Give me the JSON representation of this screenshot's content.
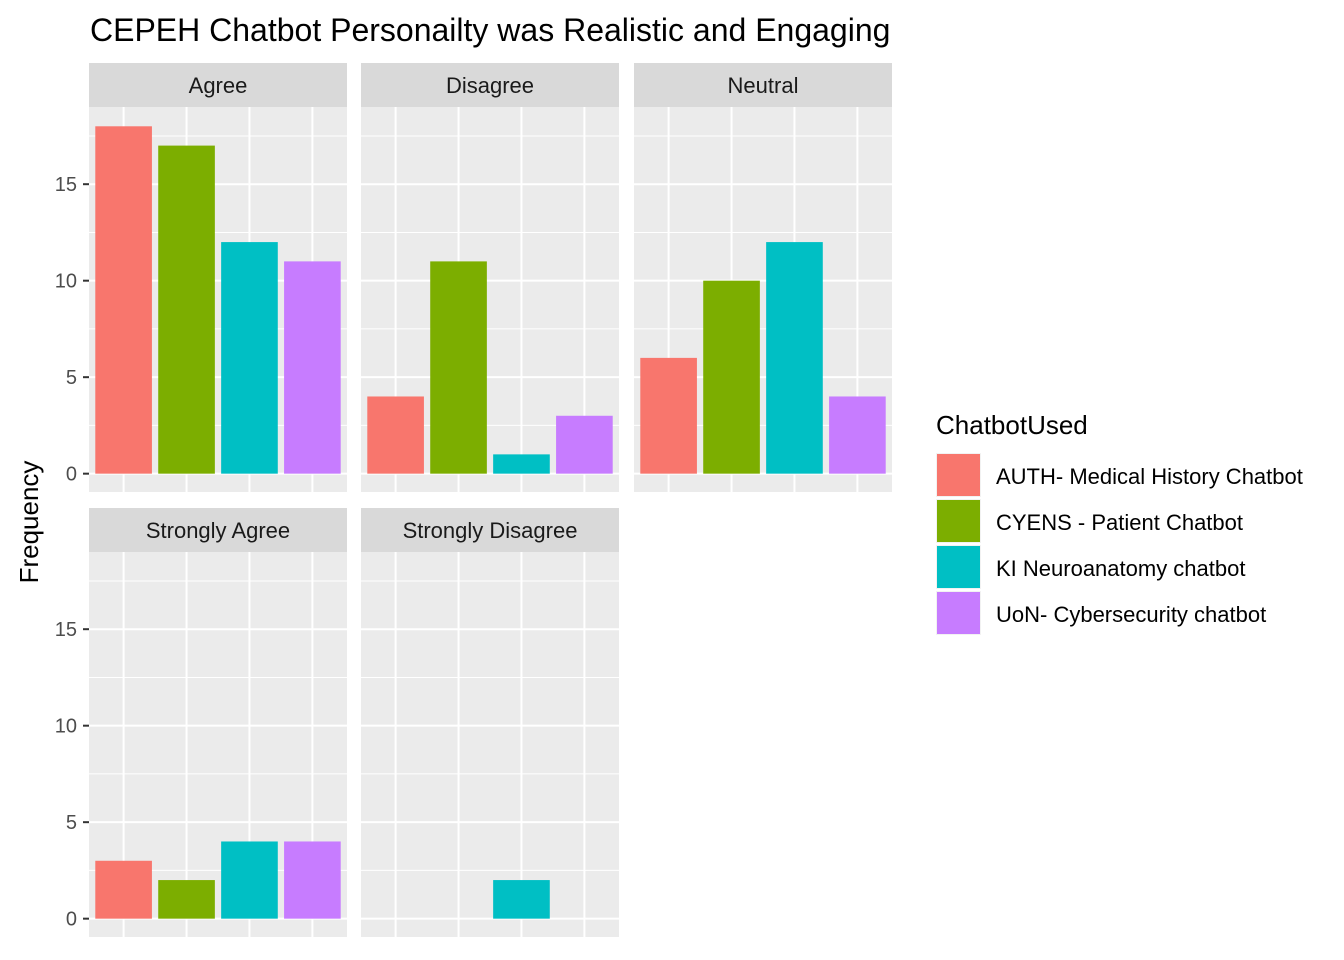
{
  "chart_data": {
    "type": "bar",
    "title": "CEPEH Chatbot Personailty was Realistic and Engaging",
    "xlabel": "",
    "ylabel": "Frequency",
    "ylim": [
      0,
      19
    ],
    "yticks": [
      0,
      5,
      10,
      15
    ],
    "facets": [
      "Agree",
      "Disagree",
      "Neutral",
      "Strongly Agree",
      "Strongly Disagree"
    ],
    "legend": {
      "title": "ChatbotUsed",
      "placement": "right"
    },
    "series": [
      {
        "name": "AUTH- Medical History Chatbot",
        "color": "#F8766D",
        "values": [
          18,
          4,
          6,
          3,
          null
        ]
      },
      {
        "name": "CYENS - Patient Chatbot",
        "color": "#7CAE00",
        "values": [
          17,
          11,
          10,
          2,
          null
        ]
      },
      {
        "name": "KI Neuroanatomy chatbot",
        "color": "#00BFC4",
        "values": [
          12,
          1,
          12,
          4,
          2
        ]
      },
      {
        "name": "UoN- Cybersecurity chatbot",
        "color": "#C77CFF",
        "values": [
          11,
          3,
          4,
          4,
          null
        ]
      }
    ],
    "panel_background": "#EBEBEB",
    "strip_background": "#D9D9D9",
    "grid": true
  }
}
